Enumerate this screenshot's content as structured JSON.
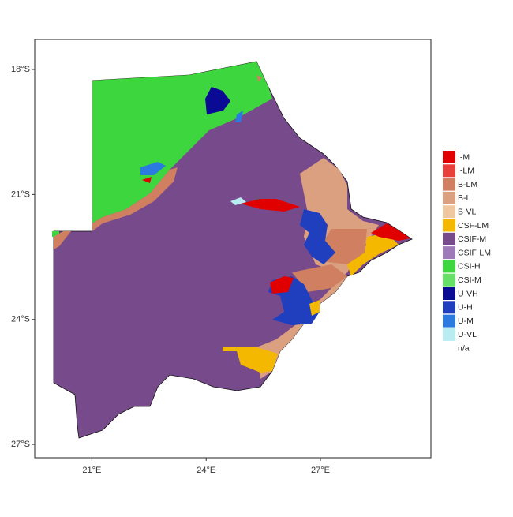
{
  "map": {
    "xlim": [
      19.5,
      29.9
    ],
    "ylim": [
      -27.32,
      -17.28
    ],
    "xticks": [
      {
        "value": 21,
        "label": "21°E"
      },
      {
        "value": 24,
        "label": "24°E"
      },
      {
        "value": 27,
        "label": "27°E"
      }
    ],
    "yticks": [
      {
        "value": -18,
        "label": "18°S"
      },
      {
        "value": -21,
        "label": "21°S"
      },
      {
        "value": -24,
        "label": "24°S"
      },
      {
        "value": -27,
        "label": "27°S"
      }
    ],
    "legend": [
      {
        "name": "I-M",
        "color": "#e00000"
      },
      {
        "name": "I-LM",
        "color": "#e8413a"
      },
      {
        "name": "B-LM",
        "color": "#d08060"
      },
      {
        "name": "B-L",
        "color": "#dba080"
      },
      {
        "name": "B-VL",
        "color": "#f0c8a0"
      },
      {
        "name": "CSF-LM",
        "color": "#f5b800"
      },
      {
        "name": "CSIF-M",
        "color": "#774a8c"
      },
      {
        "name": "CSIF-LM",
        "color": "#9e7ab8"
      },
      {
        "name": "CSI-H",
        "color": "#3ed63e"
      },
      {
        "name": "CSI-M",
        "color": "#66e066"
      },
      {
        "name": "U-VH",
        "color": "#0a0a94"
      },
      {
        "name": "U-H",
        "color": "#1f3fbf"
      },
      {
        "name": "U-M",
        "color": "#2a7ae0"
      },
      {
        "name": "U-VL",
        "color": "#b8ecf0"
      },
      {
        "name": "n/a",
        "color": null
      }
    ]
  }
}
